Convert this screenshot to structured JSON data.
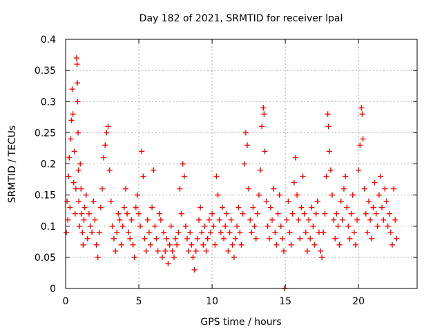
{
  "chart_data": {
    "type": "scatter",
    "title": "Day 182 of 2021, SRMTID for receiver lpal",
    "xlabel": "GPS time / hours",
    "ylabel": "SRMTID / TECUs",
    "xlim": [
      0,
      24
    ],
    "ylim": [
      0,
      0.4
    ],
    "xticks": [
      0,
      5,
      10,
      15,
      20
    ],
    "yticks": [
      0,
      0.05,
      0.1,
      0.15,
      0.2,
      0.25,
      0.3,
      0.35,
      0.4
    ],
    "xtick_labels": [
      "0",
      "5",
      "10",
      "15",
      "20"
    ],
    "ytick_labels": [
      "0",
      "0.05",
      "0.1",
      "0.15",
      "0.2",
      "0.25",
      "0.3",
      "0.35",
      "0.4"
    ],
    "grid": true,
    "legend": null,
    "series": [
      {
        "name": "SRMTID",
        "marker": "+",
        "color": "#ff0000",
        "points": [
          [
            0.05,
            0.09
          ],
          [
            0.1,
            0.14
          ],
          [
            0.15,
            0.11
          ],
          [
            0.2,
            0.18
          ],
          [
            0.25,
            0.21
          ],
          [
            0.3,
            0.13
          ],
          [
            0.35,
            0.24
          ],
          [
            0.4,
            0.27
          ],
          [
            0.45,
            0.32
          ],
          [
            0.5,
            0.28
          ],
          [
            0.55,
            0.17
          ],
          [
            0.6,
            0.22
          ],
          [
            0.65,
            0.12
          ],
          [
            0.7,
            0.16
          ],
          [
            0.75,
            0.37
          ],
          [
            0.78,
            0.36
          ],
          [
            0.8,
            0.33
          ],
          [
            0.82,
            0.3
          ],
          [
            0.85,
            0.25
          ],
          [
            0.88,
            0.19
          ],
          [
            0.9,
            0.14
          ],
          [
            0.95,
            0.1
          ],
          [
            1.0,
            0.2
          ],
          [
            1.05,
            0.16
          ],
          [
            1.1,
            0.12
          ],
          [
            1.15,
            0.09
          ],
          [
            1.2,
            0.07
          ],
          [
            1.25,
            0.11
          ],
          [
            1.3,
            0.13
          ],
          [
            1.4,
            0.15
          ],
          [
            1.5,
            0.08
          ],
          [
            1.6,
            0.12
          ],
          [
            1.7,
            0.1
          ],
          [
            1.8,
            0.09
          ],
          [
            1.9,
            0.14
          ],
          [
            2.0,
            0.11
          ],
          [
            2.1,
            0.07
          ],
          [
            2.2,
            0.05
          ],
          [
            2.3,
            0.09
          ],
          [
            2.4,
            0.13
          ],
          [
            2.5,
            0.16
          ],
          [
            2.6,
            0.21
          ],
          [
            2.7,
            0.23
          ],
          [
            2.8,
            0.25
          ],
          [
            2.9,
            0.26
          ],
          [
            3.0,
            0.19
          ],
          [
            3.1,
            0.14
          ],
          [
            3.2,
            0.1
          ],
          [
            3.3,
            0.08
          ],
          [
            3.4,
            0.06
          ],
          [
            3.5,
            0.09
          ],
          [
            3.6,
            0.12
          ],
          [
            3.7,
            0.11
          ],
          [
            3.8,
            0.07
          ],
          [
            3.9,
            0.1
          ],
          [
            4.0,
            0.13
          ],
          [
            4.1,
            0.16
          ],
          [
            4.2,
            0.12
          ],
          [
            4.3,
            0.09
          ],
          [
            4.4,
            0.08
          ],
          [
            4.5,
            0.11
          ],
          [
            4.6,
            0.07
          ],
          [
            4.7,
            0.05
          ],
          [
            4.8,
            0.13
          ],
          [
            4.9,
            0.15
          ],
          [
            5.0,
            0.12
          ],
          [
            5.1,
            0.1
          ],
          [
            5.2,
            0.22
          ],
          [
            5.3,
            0.18
          ],
          [
            5.4,
            0.08
          ],
          [
            5.5,
            0.06
          ],
          [
            5.6,
            0.11
          ],
          [
            5.7,
            0.09
          ],
          [
            5.8,
            0.07
          ],
          [
            5.9,
            0.13
          ],
          [
            6.0,
            0.19
          ],
          [
            6.1,
            0.1
          ],
          [
            6.2,
            0.08
          ],
          [
            6.3,
            0.06
          ],
          [
            6.4,
            0.12
          ],
          [
            6.5,
            0.11
          ],
          [
            6.6,
            0.05
          ],
          [
            6.7,
            0.09
          ],
          [
            6.8,
            0.06
          ],
          [
            6.9,
            0.08
          ],
          [
            7.0,
            0.04
          ],
          [
            7.1,
            0.07
          ],
          [
            7.2,
            0.1
          ],
          [
            7.3,
            0.06
          ],
          [
            7.4,
            0.05
          ],
          [
            7.5,
            0.08
          ],
          [
            7.6,
            0.07
          ],
          [
            7.7,
            0.09
          ],
          [
            7.8,
            0.16
          ],
          [
            7.9,
            0.12
          ],
          [
            8.0,
            0.2
          ],
          [
            8.1,
            0.18
          ],
          [
            8.2,
            0.1
          ],
          [
            8.3,
            0.08
          ],
          [
            8.4,
            0.06
          ],
          [
            8.5,
            0.09
          ],
          [
            8.6,
            0.07
          ],
          [
            8.7,
            0.05
          ],
          [
            8.8,
            0.03
          ],
          [
            8.9,
            0.06
          ],
          [
            9.0,
            0.08
          ],
          [
            9.1,
            0.11
          ],
          [
            9.2,
            0.13
          ],
          [
            9.3,
            0.09
          ],
          [
            9.4,
            0.07
          ],
          [
            9.5,
            0.1
          ],
          [
            9.6,
            0.06
          ],
          [
            9.7,
            0.08
          ],
          [
            9.8,
            0.11
          ],
          [
            9.9,
            0.09
          ],
          [
            10.0,
            0.12
          ],
          [
            10.1,
            0.1
          ],
          [
            10.2,
            0.07
          ],
          [
            10.3,
            0.18
          ],
          [
            10.4,
            0.15
          ],
          [
            10.5,
            0.11
          ],
          [
            10.6,
            0.09
          ],
          [
            10.7,
            0.13
          ],
          [
            10.8,
            0.08
          ],
          [
            10.9,
            0.1
          ],
          [
            11.0,
            0.12
          ],
          [
            11.1,
            0.06
          ],
          [
            11.2,
            0.09
          ],
          [
            11.3,
            0.11
          ],
          [
            11.4,
            0.07
          ],
          [
            11.5,
            0.05
          ],
          [
            11.6,
            0.08
          ],
          [
            11.7,
            0.1
          ],
          [
            11.8,
            0.13
          ],
          [
            11.9,
            0.09
          ],
          [
            12.0,
            0.07
          ],
          [
            12.1,
            0.12
          ],
          [
            12.2,
            0.2
          ],
          [
            12.3,
            0.25
          ],
          [
            12.4,
            0.23
          ],
          [
            12.5,
            0.16
          ],
          [
            12.6,
            0.11
          ],
          [
            12.7,
            0.09
          ],
          [
            12.8,
            0.13
          ],
          [
            12.9,
            0.1
          ],
          [
            13.0,
            0.08
          ],
          [
            13.1,
            0.12
          ],
          [
            13.2,
            0.15
          ],
          [
            13.3,
            0.19
          ],
          [
            13.4,
            0.26
          ],
          [
            13.5,
            0.29
          ],
          [
            13.55,
            0.28
          ],
          [
            13.6,
            0.22
          ],
          [
            13.7,
            0.14
          ],
          [
            13.8,
            0.1
          ],
          [
            13.9,
            0.08
          ],
          [
            14.0,
            0.13
          ],
          [
            14.1,
            0.11
          ],
          [
            14.2,
            0.16
          ],
          [
            14.3,
            0.09
          ],
          [
            14.4,
            0.07
          ],
          [
            14.5,
            0.12
          ],
          [
            14.6,
            0.15
          ],
          [
            14.7,
            0.1
          ],
          [
            14.8,
            0.08
          ],
          [
            14.9,
            0.06
          ],
          [
            14.95,
            0.0
          ],
          [
            15.1,
            0.11
          ],
          [
            15.2,
            0.14
          ],
          [
            15.3,
            0.09
          ],
          [
            15.4,
            0.07
          ],
          [
            15.5,
            0.12
          ],
          [
            15.6,
            0.17
          ],
          [
            15.7,
            0.21
          ],
          [
            15.8,
            0.15
          ],
          [
            15.9,
            0.11
          ],
          [
            16.0,
            0.08
          ],
          [
            16.1,
            0.13
          ],
          [
            16.2,
            0.18
          ],
          [
            16.3,
            0.12
          ],
          [
            16.4,
            0.09
          ],
          [
            16.5,
            0.06
          ],
          [
            16.6,
            0.11
          ],
          [
            16.7,
            0.08
          ],
          [
            16.8,
            0.13
          ],
          [
            16.9,
            0.1
          ],
          [
            17.0,
            0.07
          ],
          [
            17.1,
            0.12
          ],
          [
            17.2,
            0.14
          ],
          [
            17.3,
            0.09
          ],
          [
            17.4,
            0.06
          ],
          [
            17.5,
            0.05
          ],
          [
            17.6,
            0.09
          ],
          [
            17.7,
            0.12
          ],
          [
            17.8,
            0.18
          ],
          [
            17.9,
            0.28
          ],
          [
            17.95,
            0.26
          ],
          [
            18.0,
            0.22
          ],
          [
            18.1,
            0.19
          ],
          [
            18.2,
            0.15
          ],
          [
            18.3,
            0.11
          ],
          [
            18.4,
            0.08
          ],
          [
            18.5,
            0.12
          ],
          [
            18.6,
            0.1
          ],
          [
            18.7,
            0.07
          ],
          [
            18.8,
            0.14
          ],
          [
            18.9,
            0.11
          ],
          [
            19.0,
            0.16
          ],
          [
            19.1,
            0.18
          ],
          [
            19.2,
            0.13
          ],
          [
            19.3,
            0.1
          ],
          [
            19.4,
            0.08
          ],
          [
            19.5,
            0.12
          ],
          [
            19.6,
            0.15
          ],
          [
            19.7,
            0.09
          ],
          [
            19.8,
            0.07
          ],
          [
            19.9,
            0.11
          ],
          [
            20.0,
            0.19
          ],
          [
            20.1,
            0.23
          ],
          [
            20.2,
            0.29
          ],
          [
            20.25,
            0.28
          ],
          [
            20.3,
            0.24
          ],
          [
            20.4,
            0.16
          ],
          [
            20.5,
            0.12
          ],
          [
            20.6,
            0.09
          ],
          [
            20.7,
            0.14
          ],
          [
            20.8,
            0.11
          ],
          [
            20.9,
            0.08
          ],
          [
            21.0,
            0.13
          ],
          [
            21.1,
            0.17
          ],
          [
            21.2,
            0.12
          ],
          [
            21.3,
            0.1
          ],
          [
            21.4,
            0.15
          ],
          [
            21.5,
            0.18
          ],
          [
            21.6,
            0.13
          ],
          [
            21.7,
            0.11
          ],
          [
            21.8,
            0.16
          ],
          [
            21.9,
            0.14
          ],
          [
            22.0,
            0.1
          ],
          [
            22.1,
            0.12
          ],
          [
            22.2,
            0.09
          ],
          [
            22.3,
            0.07
          ],
          [
            22.4,
            0.16
          ],
          [
            22.5,
            0.11
          ],
          [
            22.6,
            0.08
          ]
        ]
      }
    ]
  }
}
